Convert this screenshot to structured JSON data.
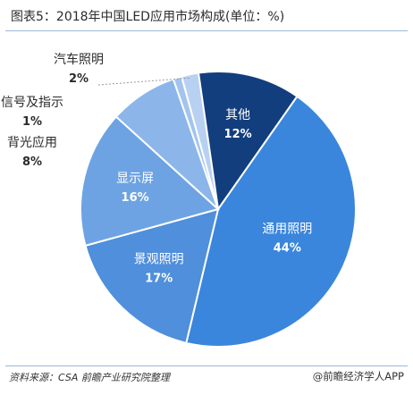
{
  "chart_data": {
    "type": "pie",
    "title": "图表5：2018年中国LED应用市场构成(单位：%)",
    "unit": "%",
    "slices": [
      {
        "label": "通用照明",
        "value": 44,
        "display": "44%",
        "color": "#3a86dc",
        "text_color": "#ffffff"
      },
      {
        "label": "景观照明",
        "value": 17,
        "display": "17%",
        "color": "#4f8fdc",
        "text_color": "#ffffff"
      },
      {
        "label": "显示屏",
        "value": 16,
        "display": "16%",
        "color": "#6ea3e3",
        "text_color": "#ffffff"
      },
      {
        "label": "背光应用",
        "value": 8,
        "display": "8%",
        "color": "#8cb6ea",
        "text_color": "#2b2b2b"
      },
      {
        "label": "信号及指示",
        "value": 1,
        "display": "1%",
        "color": "#a3c4ef",
        "text_color": "#2b2b2b"
      },
      {
        "label": "汽车照明",
        "value": 2,
        "display": "2%",
        "color": "#b8d1f2",
        "text_color": "#2b2b2b"
      },
      {
        "label": "其他",
        "value": 12,
        "display": "12%",
        "color": "#123e7e",
        "text_color": "#ffffff"
      }
    ]
  },
  "footer": {
    "source": "资料来源：CSA 前瞻产业研究院整理",
    "brand": "@前瞻经济学人APP"
  }
}
